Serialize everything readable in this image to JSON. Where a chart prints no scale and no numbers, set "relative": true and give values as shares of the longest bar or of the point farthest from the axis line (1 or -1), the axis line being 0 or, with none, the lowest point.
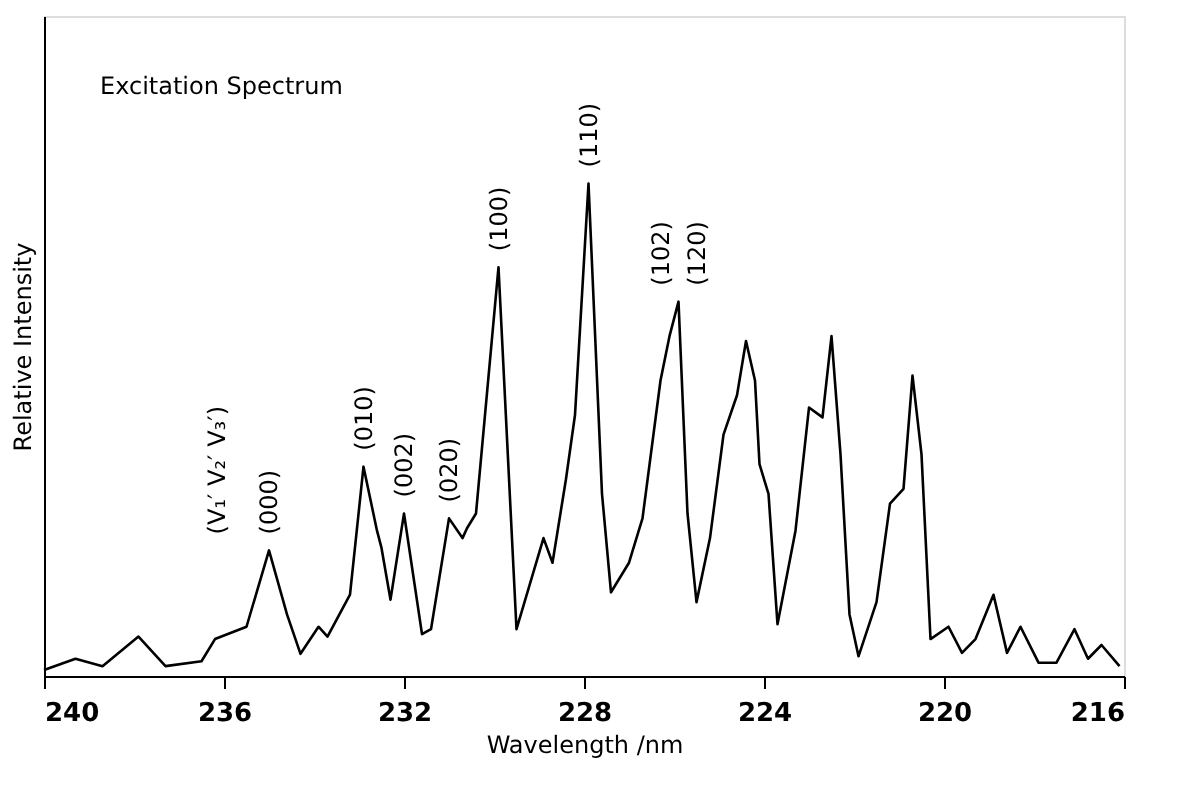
{
  "chart_data": {
    "type": "line",
    "title": "Excitation Spectrum",
    "xlabel": "Wavelength /nm",
    "ylabel": "Relative Intensity",
    "relative": true,
    "xlim": [
      240,
      216
    ],
    "xticks": [
      240,
      236,
      232,
      228,
      224,
      220,
      216
    ],
    "tick_labels": "x",
    "grid": false,
    "marker": "none",
    "line_style": "solid",
    "series": [
      {
        "color": "#000000",
        "x": [
          240,
          239.3,
          238.7,
          237.9,
          237.3,
          236.5,
          236.2,
          235.5,
          235.0,
          234.6,
          234.3,
          233.9,
          233.7,
          233.2,
          232.9,
          232.6,
          232.5,
          232.3,
          232.0,
          231.6,
          231.4,
          231.0,
          230.7,
          230.6,
          230.4,
          229.9,
          229.5,
          228.9,
          228.7,
          228.4,
          228.2,
          227.9,
          227.6,
          227.4,
          227.0,
          226.7,
          226.3,
          226.1,
          225.9,
          225.7,
          225.5,
          225.2,
          224.9,
          224.6,
          224.4,
          224.2,
          224.1,
          223.9,
          223.7,
          223.3,
          223.0,
          222.7,
          222.5,
          222.3,
          222.1,
          221.9,
          221.5,
          221.2,
          220.9,
          220.7,
          220.5,
          220.3,
          219.9,
          219.6,
          219.3,
          218.9,
          218.6,
          218.3,
          217.9,
          217.5,
          217.1,
          216.8,
          216.5,
          216.1
        ],
        "values": [
          0.012,
          0.035,
          0.02,
          0.08,
          0.02,
          0.03,
          0.075,
          0.1,
          0.255,
          0.125,
          0.045,
          0.1,
          0.08,
          0.165,
          0.425,
          0.295,
          0.26,
          0.155,
          0.33,
          0.085,
          0.095,
          0.32,
          0.28,
          0.3,
          0.33,
          0.83,
          0.095,
          0.28,
          0.23,
          0.4,
          0.53,
          1.0,
          0.37,
          0.17,
          0.23,
          0.32,
          0.6,
          0.69,
          0.76,
          0.33,
          0.15,
          0.28,
          0.49,
          0.57,
          0.68,
          0.6,
          0.43,
          0.37,
          0.105,
          0.295,
          0.545,
          0.525,
          0.69,
          0.45,
          0.125,
          0.04,
          0.15,
          0.35,
          0.38,
          0.61,
          0.45,
          0.075,
          0.1,
          0.047,
          0.075,
          0.165,
          0.047,
          0.1,
          0.027,
          0.027,
          0.095,
          0.035,
          0.063,
          0.02
        ]
      }
    ],
    "annotations": [
      "(V₁′ V₂′ V₃′)",
      {
        "text": "(000)",
        "x": 235.0,
        "y": 0.255
      },
      {
        "text": "(010)",
        "x": 232.9,
        "y": 0.425
      },
      {
        "text": "(002)",
        "x": 232.0,
        "y": 0.33
      },
      {
        "text": "(020)",
        "x": 231.0,
        "y": 0.32
      },
      {
        "text": "(100)",
        "x": 229.9,
        "y": 0.83
      },
      {
        "text": "(110)",
        "x": 227.9,
        "y": 1.0
      },
      {
        "text": "(102)",
        "x": 225.9,
        "y": 0.76
      },
      {
        "text": "(120)",
        "x": 225.9,
        "y": 0.76
      }
    ]
  }
}
